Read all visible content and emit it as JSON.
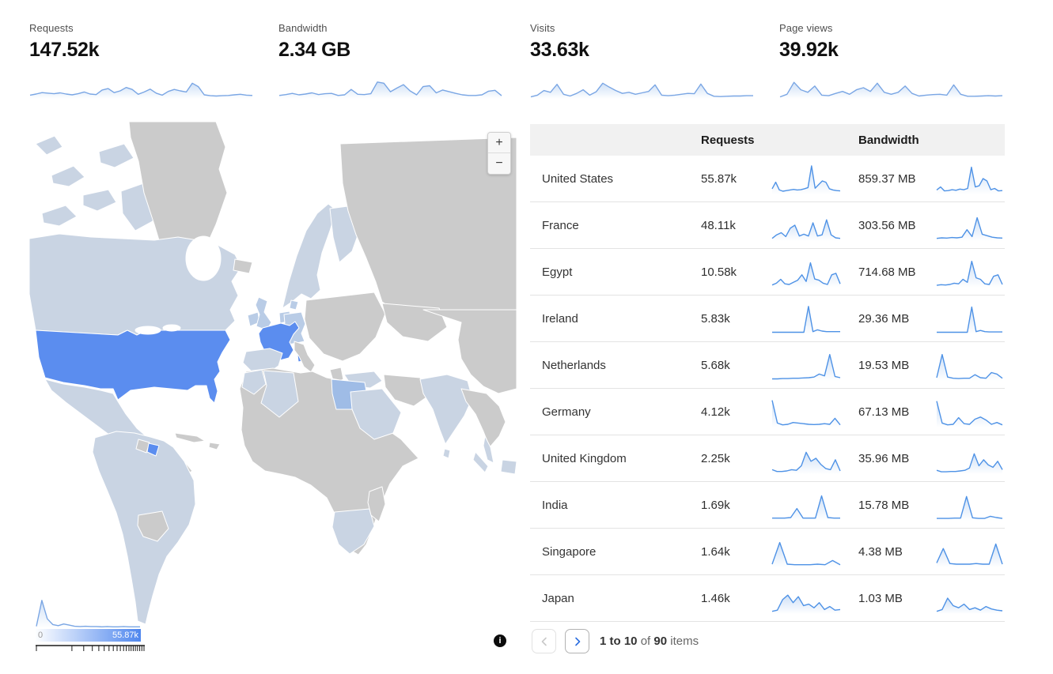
{
  "colors": {
    "map_high": "#5b8def",
    "map_mid": "#9fbce6",
    "map_low": "#c9d4e3",
    "map_low2": "#b9cce6",
    "map_none": "#cbcbcb",
    "spark_top": "#7aa6e4",
    "spark_table": "#4e92e6",
    "header_bg": "#f1f1f1",
    "accent": "#2d6fe0"
  },
  "metrics": [
    {
      "label": "Requests",
      "value": "147.52k",
      "spark": [
        10,
        14,
        19,
        17,
        15,
        18,
        14,
        11,
        15,
        21,
        14,
        12,
        28,
        33,
        19,
        25,
        37,
        30,
        13,
        21,
        31,
        17,
        10,
        23,
        30,
        25,
        21,
        52,
        40,
        11,
        8,
        7,
        8,
        9,
        11,
        13,
        10,
        9
      ]
    },
    {
      "label": "Bandwidth",
      "value": "2.34 GB",
      "spark": [
        9,
        12,
        16,
        11,
        14,
        18,
        12,
        15,
        16,
        9,
        11,
        30,
        13,
        12,
        15,
        56,
        52,
        22,
        35,
        47,
        25,
        11,
        40,
        43,
        18,
        28,
        22,
        16,
        11,
        9,
        9,
        11,
        24,
        27,
        8
      ]
    },
    {
      "label": "Visits",
      "value": "33.63k",
      "spark": [
        4,
        10,
        26,
        20,
        48,
        13,
        7,
        16,
        29,
        10,
        22,
        52,
        38,
        26,
        16,
        20,
        13,
        18,
        23,
        46,
        10,
        8,
        10,
        13,
        16,
        15,
        49,
        16,
        6,
        5,
        6,
        7,
        7,
        8,
        8
      ]
    },
    {
      "label": "Page views",
      "value": "39.92k",
      "spark": [
        4,
        13,
        55,
        29,
        20,
        42,
        10,
        8,
        16,
        23,
        13,
        29,
        36,
        23,
        52,
        20,
        13,
        20,
        42,
        16,
        7,
        10,
        12,
        13,
        10,
        46,
        13,
        6,
        6,
        7,
        8,
        7,
        8
      ]
    }
  ],
  "map": {
    "zoom_in_label": "+",
    "zoom_out_label": "−",
    "legend": {
      "min": "0",
      "max": "55.87k",
      "histogram": [
        4,
        95,
        30,
        10,
        6,
        12,
        8,
        4,
        3,
        4,
        3,
        3,
        2,
        3,
        2,
        2,
        3,
        2,
        2,
        2
      ]
    },
    "regions": {
      "United States": "high",
      "France": "high",
      "French Guiana": "high",
      "Egypt": "mid",
      "Canada": "low",
      "Mexico": "low",
      "Brazil": "low",
      "India": "low",
      "Saudi Arabia": "low",
      "United Kingdom": "low2",
      "Ireland": "low2",
      "Germany": "low2",
      "Netherlands": "low2",
      "others": "none"
    }
  },
  "table": {
    "columns": [
      "",
      "Requests",
      "Bandwidth"
    ],
    "rows": [
      {
        "country": "United States",
        "requests": "55.87k",
        "requests_spark": [
          16,
          38,
          12,
          8,
          10,
          12,
          14,
          12,
          13,
          16,
          20,
          92,
          18,
          30,
          42,
          38,
          16,
          12,
          10,
          9
        ],
        "bandwidth": "859.37 MB",
        "bandwidth_spark": [
          12,
          22,
          9,
          10,
          13,
          11,
          15,
          13,
          17,
          88,
          22,
          26,
          50,
          42,
          13,
          17,
          9,
          10
        ]
      },
      {
        "country": "France",
        "requests": "48.11k",
        "requests_spark": [
          6,
          18,
          25,
          12,
          40,
          50,
          14,
          20,
          14,
          58,
          14,
          18,
          68,
          18,
          8,
          6
        ],
        "bandwidth": "303.56 MB",
        "bandwidth_spark": [
          6,
          8,
          7,
          9,
          8,
          10,
          35,
          12,
          75,
          20,
          15,
          10,
          8,
          7
        ]
      },
      {
        "country": "Egypt",
        "requests": "10.58k",
        "requests_spark": [
          6,
          12,
          25,
          10,
          8,
          15,
          22,
          40,
          18,
          80,
          26,
          22,
          12,
          8,
          40,
          45,
          10
        ],
        "bandwidth": "714.68 MB",
        "bandwidth_spark": [
          5,
          7,
          6,
          8,
          12,
          10,
          25,
          15,
          85,
          30,
          25,
          10,
          8,
          35,
          40,
          8
        ]
      },
      {
        "country": "Ireland",
        "requests": "5.83k",
        "requests_spark": [
          4,
          4,
          4,
          4,
          4,
          4,
          4,
          4,
          90,
          6,
          12,
          8,
          6,
          6,
          6,
          6
        ],
        "bandwidth": "29.36 MB",
        "bandwidth_spark": [
          4,
          4,
          4,
          4,
          4,
          4,
          4,
          4,
          88,
          6,
          10,
          6,
          5,
          5,
          5,
          5
        ]
      },
      {
        "country": "Netherlands",
        "requests": "5.68k",
        "requests_spark": [
          4,
          4,
          5,
          5,
          6,
          6,
          7,
          8,
          10,
          20,
          14,
          85,
          12,
          8
        ],
        "bandwidth": "19.53 MB",
        "bandwidth_spark": [
          8,
          85,
          10,
          6,
          5,
          6,
          6,
          18,
          8,
          6,
          25,
          20,
          6
        ]
      },
      {
        "country": "Germany",
        "requests": "4.12k",
        "requests_spark": [
          88,
          12,
          6,
          8,
          14,
          12,
          10,
          8,
          7,
          8,
          10,
          8,
          28,
          6
        ],
        "bandwidth": "67.13 MB",
        "bandwidth_spark": [
          85,
          12,
          6,
          8,
          30,
          10,
          8,
          25,
          32,
          22,
          8,
          14,
          6
        ]
      },
      {
        "country": "United Kingdom",
        "requests": "2.25k",
        "requests_spark": [
          12,
          6,
          6,
          8,
          12,
          10,
          25,
          70,
          40,
          50,
          30,
          16,
          12,
          45,
          8
        ],
        "bandwidth": "35.96 MB",
        "bandwidth_spark": [
          10,
          5,
          5,
          6,
          6,
          8,
          10,
          18,
          65,
          25,
          45,
          28,
          20,
          40,
          12
        ]
      },
      {
        "country": "India",
        "requests": "1.69k",
        "requests_spark": [
          6,
          6,
          6,
          8,
          38,
          6,
          6,
          6,
          80,
          8,
          6,
          6
        ],
        "bandwidth": "15.78 MB",
        "bandwidth_spark": [
          5,
          5,
          5,
          6,
          6,
          78,
          7,
          5,
          5,
          12,
          8,
          5
        ]
      },
      {
        "country": "Singapore",
        "requests": "1.64k",
        "requests_spark": [
          8,
          80,
          8,
          6,
          6,
          6,
          8,
          6,
          20,
          6
        ],
        "bandwidth": "4.38 MB",
        "bandwidth_spark": [
          12,
          60,
          10,
          8,
          8,
          8,
          10,
          8,
          8,
          75,
          8
        ]
      },
      {
        "country": "Japan",
        "requests": "1.46k",
        "requests_spark": [
          6,
          10,
          45,
          60,
          35,
          55,
          25,
          30,
          18,
          35,
          12,
          22,
          10,
          12
        ],
        "bandwidth": "1.03 MB",
        "bandwidth_spark": [
          6,
          12,
          50,
          25,
          18,
          30,
          12,
          18,
          10,
          22,
          14,
          10,
          8
        ]
      }
    ]
  },
  "pagination": {
    "range": "1 to 10",
    "of_label": "of",
    "total": "90",
    "items_label": "items"
  },
  "info_label": "i"
}
